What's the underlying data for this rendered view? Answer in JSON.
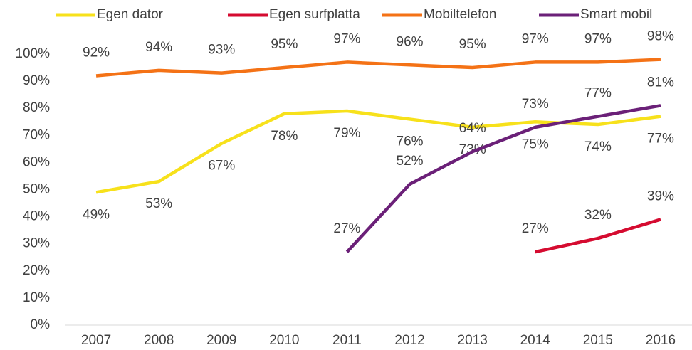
{
  "chart_data": {
    "type": "line",
    "categories": [
      "2007",
      "2008",
      "2009",
      "2010",
      "2011",
      "2012",
      "2013",
      "2014",
      "2015",
      "2016"
    ],
    "series": [
      {
        "name": "Egen dator",
        "color": "#f7e11b",
        "label_position": "below",
        "values": [
          49,
          53,
          67,
          78,
          79,
          76,
          73,
          75,
          74,
          77
        ],
        "value_labels": [
          "49%",
          "53%",
          "67%",
          "78%",
          "79%",
          "76%",
          "73%",
          "75%",
          "74%",
          "77%"
        ]
      },
      {
        "name": "Egen surfplatta",
        "color": "#d50b30",
        "label_position": "above",
        "values": [
          null,
          null,
          null,
          null,
          null,
          null,
          null,
          27,
          32,
          39
        ],
        "value_labels": [
          null,
          null,
          null,
          null,
          null,
          null,
          null,
          "27%",
          "32%",
          "39%"
        ]
      },
      {
        "name": "Mobiltelefon",
        "color": "#f47216",
        "label_position": "above",
        "values": [
          92,
          94,
          93,
          95,
          97,
          96,
          95,
          97,
          97,
          98
        ],
        "value_labels": [
          "92%",
          "94%",
          "93%",
          "95%",
          "97%",
          "96%",
          "95%",
          "97%",
          "97%",
          "98%"
        ]
      },
      {
        "name": "Smart mobil",
        "color": "#6b2078",
        "label_position": "above",
        "values": [
          null,
          null,
          null,
          null,
          27,
          52,
          64,
          73,
          77,
          81
        ],
        "value_labels": [
          null,
          null,
          null,
          null,
          "27%",
          "52%",
          "64%",
          "73%",
          "77%",
          "81%"
        ]
      }
    ],
    "ylim": [
      0,
      100
    ],
    "yticks": [
      {
        "value": 0,
        "label": "0%"
      },
      {
        "value": 10,
        "label": "10%"
      },
      {
        "value": 20,
        "label": "20%"
      },
      {
        "value": 30,
        "label": "30%"
      },
      {
        "value": 40,
        "label": "40%"
      },
      {
        "value": 50,
        "label": "50%"
      },
      {
        "value": 60,
        "label": "60%"
      },
      {
        "value": 70,
        "label": "70%"
      },
      {
        "value": 80,
        "label": "80%"
      },
      {
        "value": 90,
        "label": "90%"
      },
      {
        "value": 100,
        "label": "100%"
      }
    ],
    "grid": false,
    "legend": "top"
  }
}
